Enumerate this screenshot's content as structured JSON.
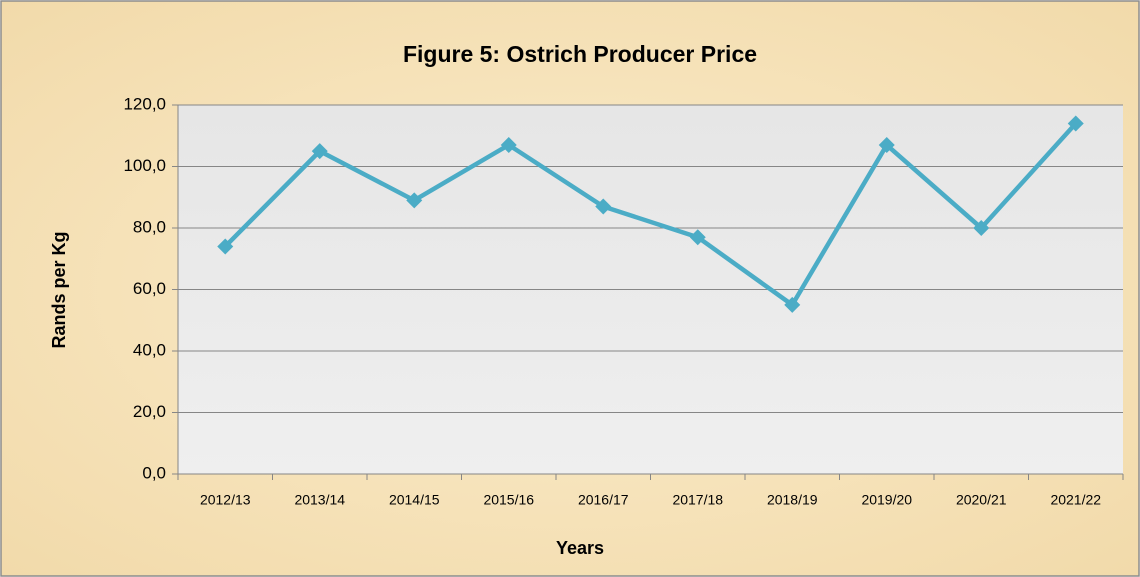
{
  "chart_data": {
    "type": "line",
    "title": "Figure 5: Ostrich Producer Price",
    "x_label": "Years",
    "y_label": "Rands per Kg",
    "categories": [
      "2012/13",
      "2013/14",
      "2014/15",
      "2015/16",
      "2016/17",
      "2017/18",
      "2018/19",
      "2019/20",
      "2020/21",
      "2021/22"
    ],
    "series": [
      {
        "name": "Ostrich Producer Price",
        "color": "#4bacc6",
        "values": [
          74,
          105,
          89,
          107,
          87,
          77,
          55,
          107,
          80,
          114
        ]
      }
    ],
    "ylim": [
      0,
      120
    ],
    "yticks": [
      {
        "value": 0,
        "label": "0,0"
      },
      {
        "value": 20,
        "label": "20,0"
      },
      {
        "value": 40,
        "label": "40,0"
      },
      {
        "value": 60,
        "label": "60,0"
      },
      {
        "value": 80,
        "label": "80,0"
      },
      {
        "value": 100,
        "label": "100,0"
      },
      {
        "value": 120,
        "label": "120,0"
      }
    ],
    "grid": true
  }
}
